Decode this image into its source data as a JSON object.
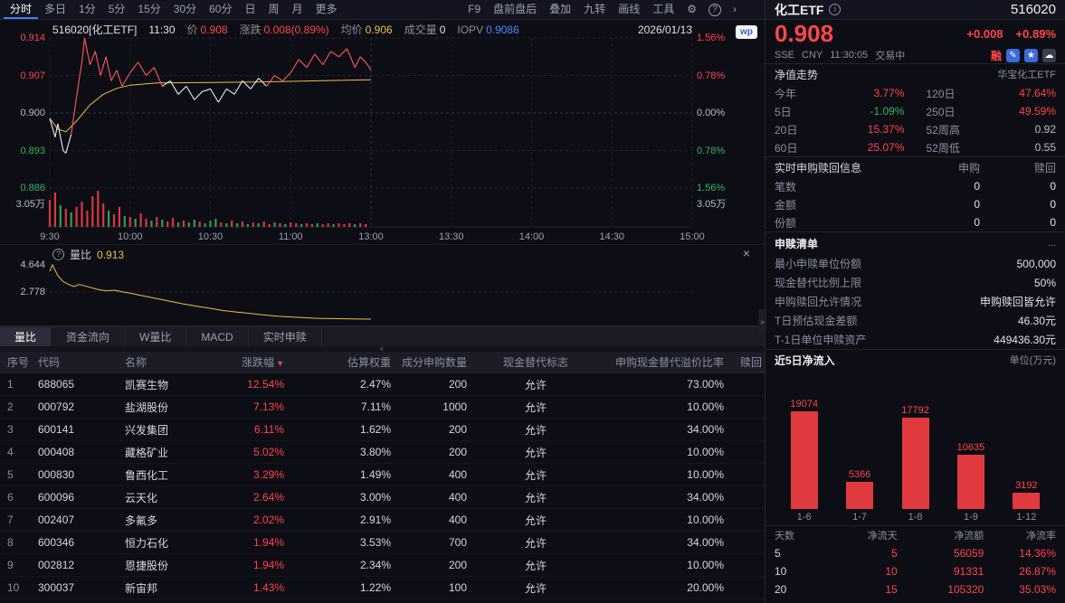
{
  "colors": {
    "red": "#ff4649",
    "green": "#35b566",
    "yellow": "#e8c14a",
    "blue": "#4a8cff",
    "bar_red": "#e03a3f"
  },
  "toolbar": {
    "periods": [
      "分时",
      "多日",
      "1分",
      "5分",
      "15分",
      "30分",
      "60分",
      "日",
      "周",
      "月",
      "更多"
    ],
    "active_period": "分时",
    "tools": [
      "F9",
      "盘前盘后",
      "叠加",
      "九转",
      "画线",
      "工具"
    ],
    "gear_glyph": "⚙",
    "help_glyph": "?",
    "arrow_glyph": "›"
  },
  "chart_header": {
    "symbol": "516020[化工ETF]",
    "time": "11:30",
    "price_label": "价",
    "price": "0.908",
    "change_label": "涨跌",
    "change": "0.008(0.89%)",
    "avg_label": "均价",
    "avg": "0.906",
    "volume_label": "成交量",
    "volume": "0",
    "iopv_label": "IOPV",
    "iopv": "0.9086",
    "date": "2026/01/13"
  },
  "main_chart": {
    "watermark": "wp",
    "y_left": [
      {
        "t": "0.914",
        "c": "r"
      },
      {
        "t": "0.907",
        "c": "r"
      },
      {
        "t": "0.900",
        "c": "w"
      },
      {
        "t": "0.893",
        "c": "g"
      },
      {
        "t": "0.886",
        "c": "g"
      }
    ],
    "y_right": [
      {
        "t": "1.56%",
        "c": "r"
      },
      {
        "t": "0.78%",
        "c": "r"
      },
      {
        "t": "0.00%",
        "c": "w"
      },
      {
        "t": "0.78%",
        "c": "g"
      },
      {
        "t": "1.56%",
        "c": "g"
      }
    ],
    "vol_label": "3.05万",
    "x_labels": [
      "9:30",
      "10:00",
      "10:30",
      "11:00",
      "13:00",
      "13:30",
      "14:00",
      "14:30",
      "15:00"
    ],
    "price_max": 0.914,
    "price_min": 0.886,
    "session_minutes": 240,
    "price_series": [
      [
        0,
        0.899
      ],
      [
        2,
        0.8955
      ],
      [
        3,
        0.898
      ],
      [
        5,
        0.893
      ],
      [
        6,
        0.8925
      ],
      [
        8,
        0.896
      ],
      [
        10,
        0.903
      ],
      [
        12,
        0.9095
      ],
      [
        13,
        0.914
      ],
      [
        15,
        0.909
      ],
      [
        17,
        0.9115
      ],
      [
        19,
        0.907
      ],
      [
        21,
        0.9105
      ],
      [
        23,
        0.906
      ],
      [
        25,
        0.908
      ],
      [
        27,
        0.905
      ],
      [
        30,
        0.9075
      ],
      [
        33,
        0.9095
      ],
      [
        36,
        0.907
      ],
      [
        39,
        0.9085
      ],
      [
        42,
        0.905
      ],
      [
        45,
        0.906
      ],
      [
        48,
        0.9035
      ],
      [
        51,
        0.905
      ],
      [
        54,
        0.9025
      ],
      [
        57,
        0.904
      ],
      [
        60,
        0.9045
      ],
      [
        63,
        0.902
      ],
      [
        66,
        0.9045
      ],
      [
        69,
        0.9035
      ],
      [
        72,
        0.906
      ],
      [
        75,
        0.9045
      ],
      [
        78,
        0.9065
      ],
      [
        81,
        0.905
      ],
      [
        84,
        0.907
      ],
      [
        87,
        0.906
      ],
      [
        90,
        0.9075
      ],
      [
        93,
        0.91
      ],
      [
        96,
        0.9085
      ],
      [
        99,
        0.911
      ],
      [
        102,
        0.909
      ],
      [
        105,
        0.9115
      ],
      [
        108,
        0.9105
      ],
      [
        111,
        0.912
      ],
      [
        114,
        0.9085
      ],
      [
        116,
        0.9105
      ],
      [
        118,
        0.9095
      ],
      [
        120,
        0.908
      ]
    ],
    "avg_series": [
      [
        0,
        0.899
      ],
      [
        3,
        0.897
      ],
      [
        6,
        0.8965
      ],
      [
        10,
        0.8985
      ],
      [
        15,
        0.9015
      ],
      [
        20,
        0.9035
      ],
      [
        25,
        0.9046
      ],
      [
        30,
        0.9052
      ],
      [
        40,
        0.9056
      ],
      [
        60,
        0.9057
      ],
      [
        80,
        0.9058
      ],
      [
        100,
        0.906
      ],
      [
        120,
        0.9062
      ]
    ],
    "volume_bars": [
      [
        0,
        30,
        "r"
      ],
      [
        2,
        38,
        "r"
      ],
      [
        4,
        24,
        "g"
      ],
      [
        6,
        20,
        "r"
      ],
      [
        8,
        16,
        "g"
      ],
      [
        10,
        22,
        "r"
      ],
      [
        12,
        28,
        "r"
      ],
      [
        14,
        18,
        "r"
      ],
      [
        16,
        34,
        "r"
      ],
      [
        18,
        40,
        "r"
      ],
      [
        20,
        26,
        "r"
      ],
      [
        22,
        18,
        "g"
      ],
      [
        24,
        14,
        "r"
      ],
      [
        26,
        22,
        "r"
      ],
      [
        28,
        12,
        "g"
      ],
      [
        30,
        11,
        "r"
      ],
      [
        32,
        9,
        "g"
      ],
      [
        34,
        15,
        "r"
      ],
      [
        36,
        9,
        "r"
      ],
      [
        38,
        7,
        "g"
      ],
      [
        40,
        11,
        "r"
      ],
      [
        42,
        8,
        "g"
      ],
      [
        44,
        6,
        "r"
      ],
      [
        46,
        10,
        "r"
      ],
      [
        48,
        5,
        "g"
      ],
      [
        50,
        7,
        "r"
      ],
      [
        52,
        5,
        "g"
      ],
      [
        54,
        8,
        "g"
      ],
      [
        56,
        6,
        "r"
      ],
      [
        58,
        4,
        "g"
      ],
      [
        60,
        7,
        "g"
      ],
      [
        62,
        9,
        "g"
      ],
      [
        64,
        5,
        "r"
      ],
      [
        66,
        4,
        "g"
      ],
      [
        68,
        7,
        "r"
      ],
      [
        70,
        4,
        "g"
      ],
      [
        72,
        6,
        "r"
      ],
      [
        74,
        3,
        "g"
      ],
      [
        76,
        5,
        "r"
      ],
      [
        78,
        4,
        "g"
      ],
      [
        80,
        6,
        "r"
      ],
      [
        82,
        3,
        "r"
      ],
      [
        84,
        5,
        "g"
      ],
      [
        86,
        4,
        "r"
      ],
      [
        88,
        3,
        "g"
      ],
      [
        90,
        5,
        "r"
      ],
      [
        92,
        4,
        "r"
      ],
      [
        94,
        3,
        "g"
      ],
      [
        96,
        4,
        "r"
      ],
      [
        98,
        3,
        "r"
      ],
      [
        100,
        4,
        "g"
      ],
      [
        102,
        3,
        "r"
      ],
      [
        104,
        4,
        "r"
      ],
      [
        106,
        3,
        "g"
      ],
      [
        108,
        4,
        "r"
      ],
      [
        110,
        3,
        "r"
      ],
      [
        112,
        4,
        "r"
      ],
      [
        114,
        3,
        "g"
      ],
      [
        116,
        4,
        "r"
      ],
      [
        118,
        3,
        "r"
      ]
    ]
  },
  "ratio_panel": {
    "help_icon": "?",
    "label": "量比",
    "value": "0.913",
    "y_labels": [
      "4.644",
      "2.778"
    ],
    "series": [
      [
        0,
        4.2
      ],
      [
        1,
        4.644
      ],
      [
        3,
        3.9
      ],
      [
        5,
        3.5
      ],
      [
        7,
        3.3
      ],
      [
        9,
        3.15
      ],
      [
        11,
        3.3
      ],
      [
        13,
        3.2
      ],
      [
        15,
        3.1
      ],
      [
        18,
        2.95
      ],
      [
        21,
        2.85
      ],
      [
        24,
        2.9
      ],
      [
        27,
        2.8
      ],
      [
        30,
        2.7
      ],
      [
        34,
        2.55
      ],
      [
        38,
        2.4
      ],
      [
        42,
        2.25
      ],
      [
        46,
        2.1
      ],
      [
        50,
        1.95
      ],
      [
        55,
        1.8
      ],
      [
        60,
        1.65
      ],
      [
        65,
        1.5
      ],
      [
        70,
        1.4
      ],
      [
        75,
        1.3
      ],
      [
        80,
        1.2
      ],
      [
        85,
        1.12
      ],
      [
        90,
        1.06
      ],
      [
        95,
        1.01
      ],
      [
        100,
        0.97
      ],
      [
        105,
        0.95
      ],
      [
        110,
        0.935
      ],
      [
        115,
        0.92
      ],
      [
        120,
        0.913
      ]
    ],
    "close_glyph": "×"
  },
  "tabs": {
    "items": [
      "量比",
      "资金流向",
      "W量比",
      "MACD",
      "实时申赎"
    ],
    "active": "量比"
  },
  "stock_table": {
    "headers": [
      "序号",
      "代码",
      "名称",
      "涨跌幅",
      "估算权重",
      "成分申购数量",
      "现金替代标志",
      "申购现金替代溢价比率",
      "赎回"
    ],
    "sort_column": "涨跌幅",
    "rows": [
      [
        "1",
        "688065",
        "凯赛生物",
        "12.54%",
        "2.47%",
        "200",
        "允许",
        "73.00%"
      ],
      [
        "2",
        "000792",
        "盐湖股份",
        "7.13%",
        "7.11%",
        "1000",
        "允许",
        "10.00%"
      ],
      [
        "3",
        "600141",
        "兴发集团",
        "6.11%",
        "1.62%",
        "200",
        "允许",
        "34.00%"
      ],
      [
        "4",
        "000408",
        "藏格矿业",
        "5.02%",
        "3.80%",
        "200",
        "允许",
        "10.00%"
      ],
      [
        "5",
        "000830",
        "鲁西化工",
        "3.29%",
        "1.49%",
        "400",
        "允许",
        "10.00%"
      ],
      [
        "6",
        "600096",
        "云天化",
        "2.64%",
        "3.00%",
        "400",
        "允许",
        "34.00%"
      ],
      [
        "7",
        "002407",
        "多氟多",
        "2.02%",
        "2.91%",
        "400",
        "允许",
        "10.00%"
      ],
      [
        "8",
        "600346",
        "恒力石化",
        "1.94%",
        "3.53%",
        "700",
        "允许",
        "34.00%"
      ],
      [
        "9",
        "002812",
        "恩捷股份",
        "1.94%",
        "2.34%",
        "200",
        "允许",
        "10.00%"
      ],
      [
        "10",
        "300037",
        "新宙邦",
        "1.43%",
        "1.22%",
        "100",
        "允许",
        "20.00%"
      ]
    ]
  },
  "quote": {
    "name": "化工ETF",
    "code": "516020",
    "price": "0.908",
    "change": "+0.008",
    "change_pct": "+0.89%",
    "exchange": "SSE",
    "currency": "CNY",
    "time": "11:30:05",
    "status": "交易中",
    "margin_flag": "融"
  },
  "nav": {
    "title": "净值走势",
    "fund_name": "华宝化工ETF",
    "stats": [
      {
        "label": "今年",
        "value": "3.77%",
        "c": "r"
      },
      {
        "label": "120日",
        "value": "47.64%",
        "c": "r"
      },
      {
        "label": "5日",
        "value": "-1.09%",
        "c": "g"
      },
      {
        "label": "250日",
        "value": "49.59%",
        "c": "r"
      },
      {
        "label": "20日",
        "value": "15.37%",
        "c": "r"
      },
      {
        "label": "52周高",
        "value": "0.92",
        "c": "w"
      },
      {
        "label": "60日",
        "value": "25.07%",
        "c": "r"
      },
      {
        "label": "52周低",
        "value": "0.55",
        "c": "w"
      }
    ]
  },
  "realtime": {
    "title": "实时申购赎回信息",
    "col1": "申购",
    "col2": "赎回",
    "rows": [
      [
        "笔数",
        "0",
        "0"
      ],
      [
        "金额",
        "0",
        "0"
      ],
      [
        "份额",
        "0",
        "0"
      ]
    ]
  },
  "redemption": {
    "title": "申赎清单",
    "more": "...",
    "rows": [
      [
        "最小申赎单位份额",
        "500,000"
      ],
      [
        "现金替代比例上限",
        "50%"
      ],
      [
        "申购赎回允许情况",
        "申购赎回皆允许"
      ],
      [
        "T日预估现金差额",
        "46.30元"
      ],
      [
        "T-1日单位申赎资产",
        "449436.30元"
      ]
    ]
  },
  "net_inflow": {
    "title": "近5日净流入",
    "unit": "单位(万元)",
    "chart_data": {
      "type": "bar",
      "categories": [
        "1-6",
        "1-7",
        "1-8",
        "1-9",
        "1-12"
      ],
      "values": [
        19074,
        5366,
        17792,
        10635,
        3192
      ]
    },
    "table": {
      "headers": [
        "天数",
        "净流天",
        "净流额",
        "净流率"
      ],
      "rows": [
        [
          "5",
          "5",
          "56059",
          "14.36%"
        ],
        [
          "10",
          "10",
          "91331",
          "26.87%"
        ],
        [
          "20",
          "15",
          "105320",
          "35.03%"
        ]
      ]
    }
  }
}
